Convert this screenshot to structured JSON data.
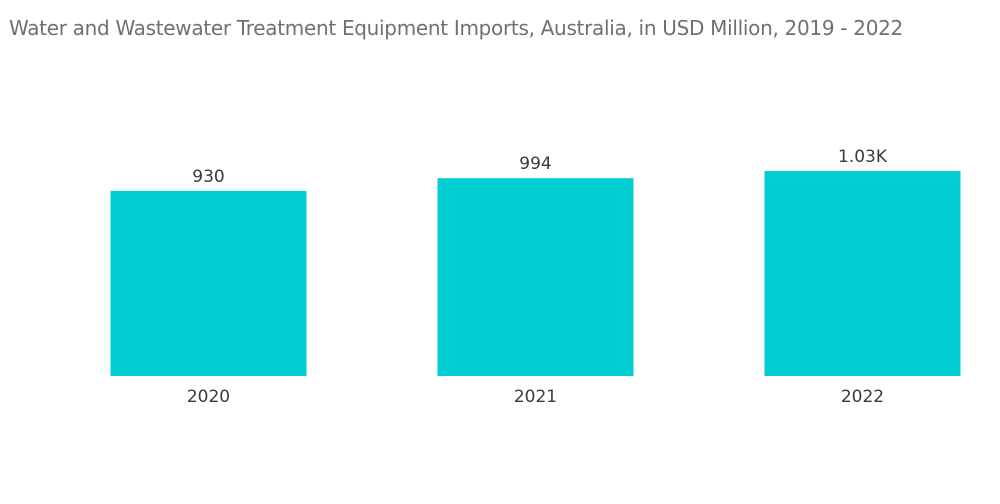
{
  "chart_data": {
    "type": "bar",
    "title": "Water and Wastewater Treatment Equipment Imports, Australia, in USD Million, 2019 - 2022",
    "categories": [
      "2020",
      "2021",
      "2022"
    ],
    "values": [
      930,
      994,
      1030
    ],
    "data_labels": [
      "930",
      "994",
      "1.03K"
    ],
    "xlabel": "",
    "ylabel": "",
    "ylim": [
      0,
      1030
    ],
    "grid": false,
    "legend": "none",
    "colors": {
      "bar": "#00ced1"
    }
  }
}
